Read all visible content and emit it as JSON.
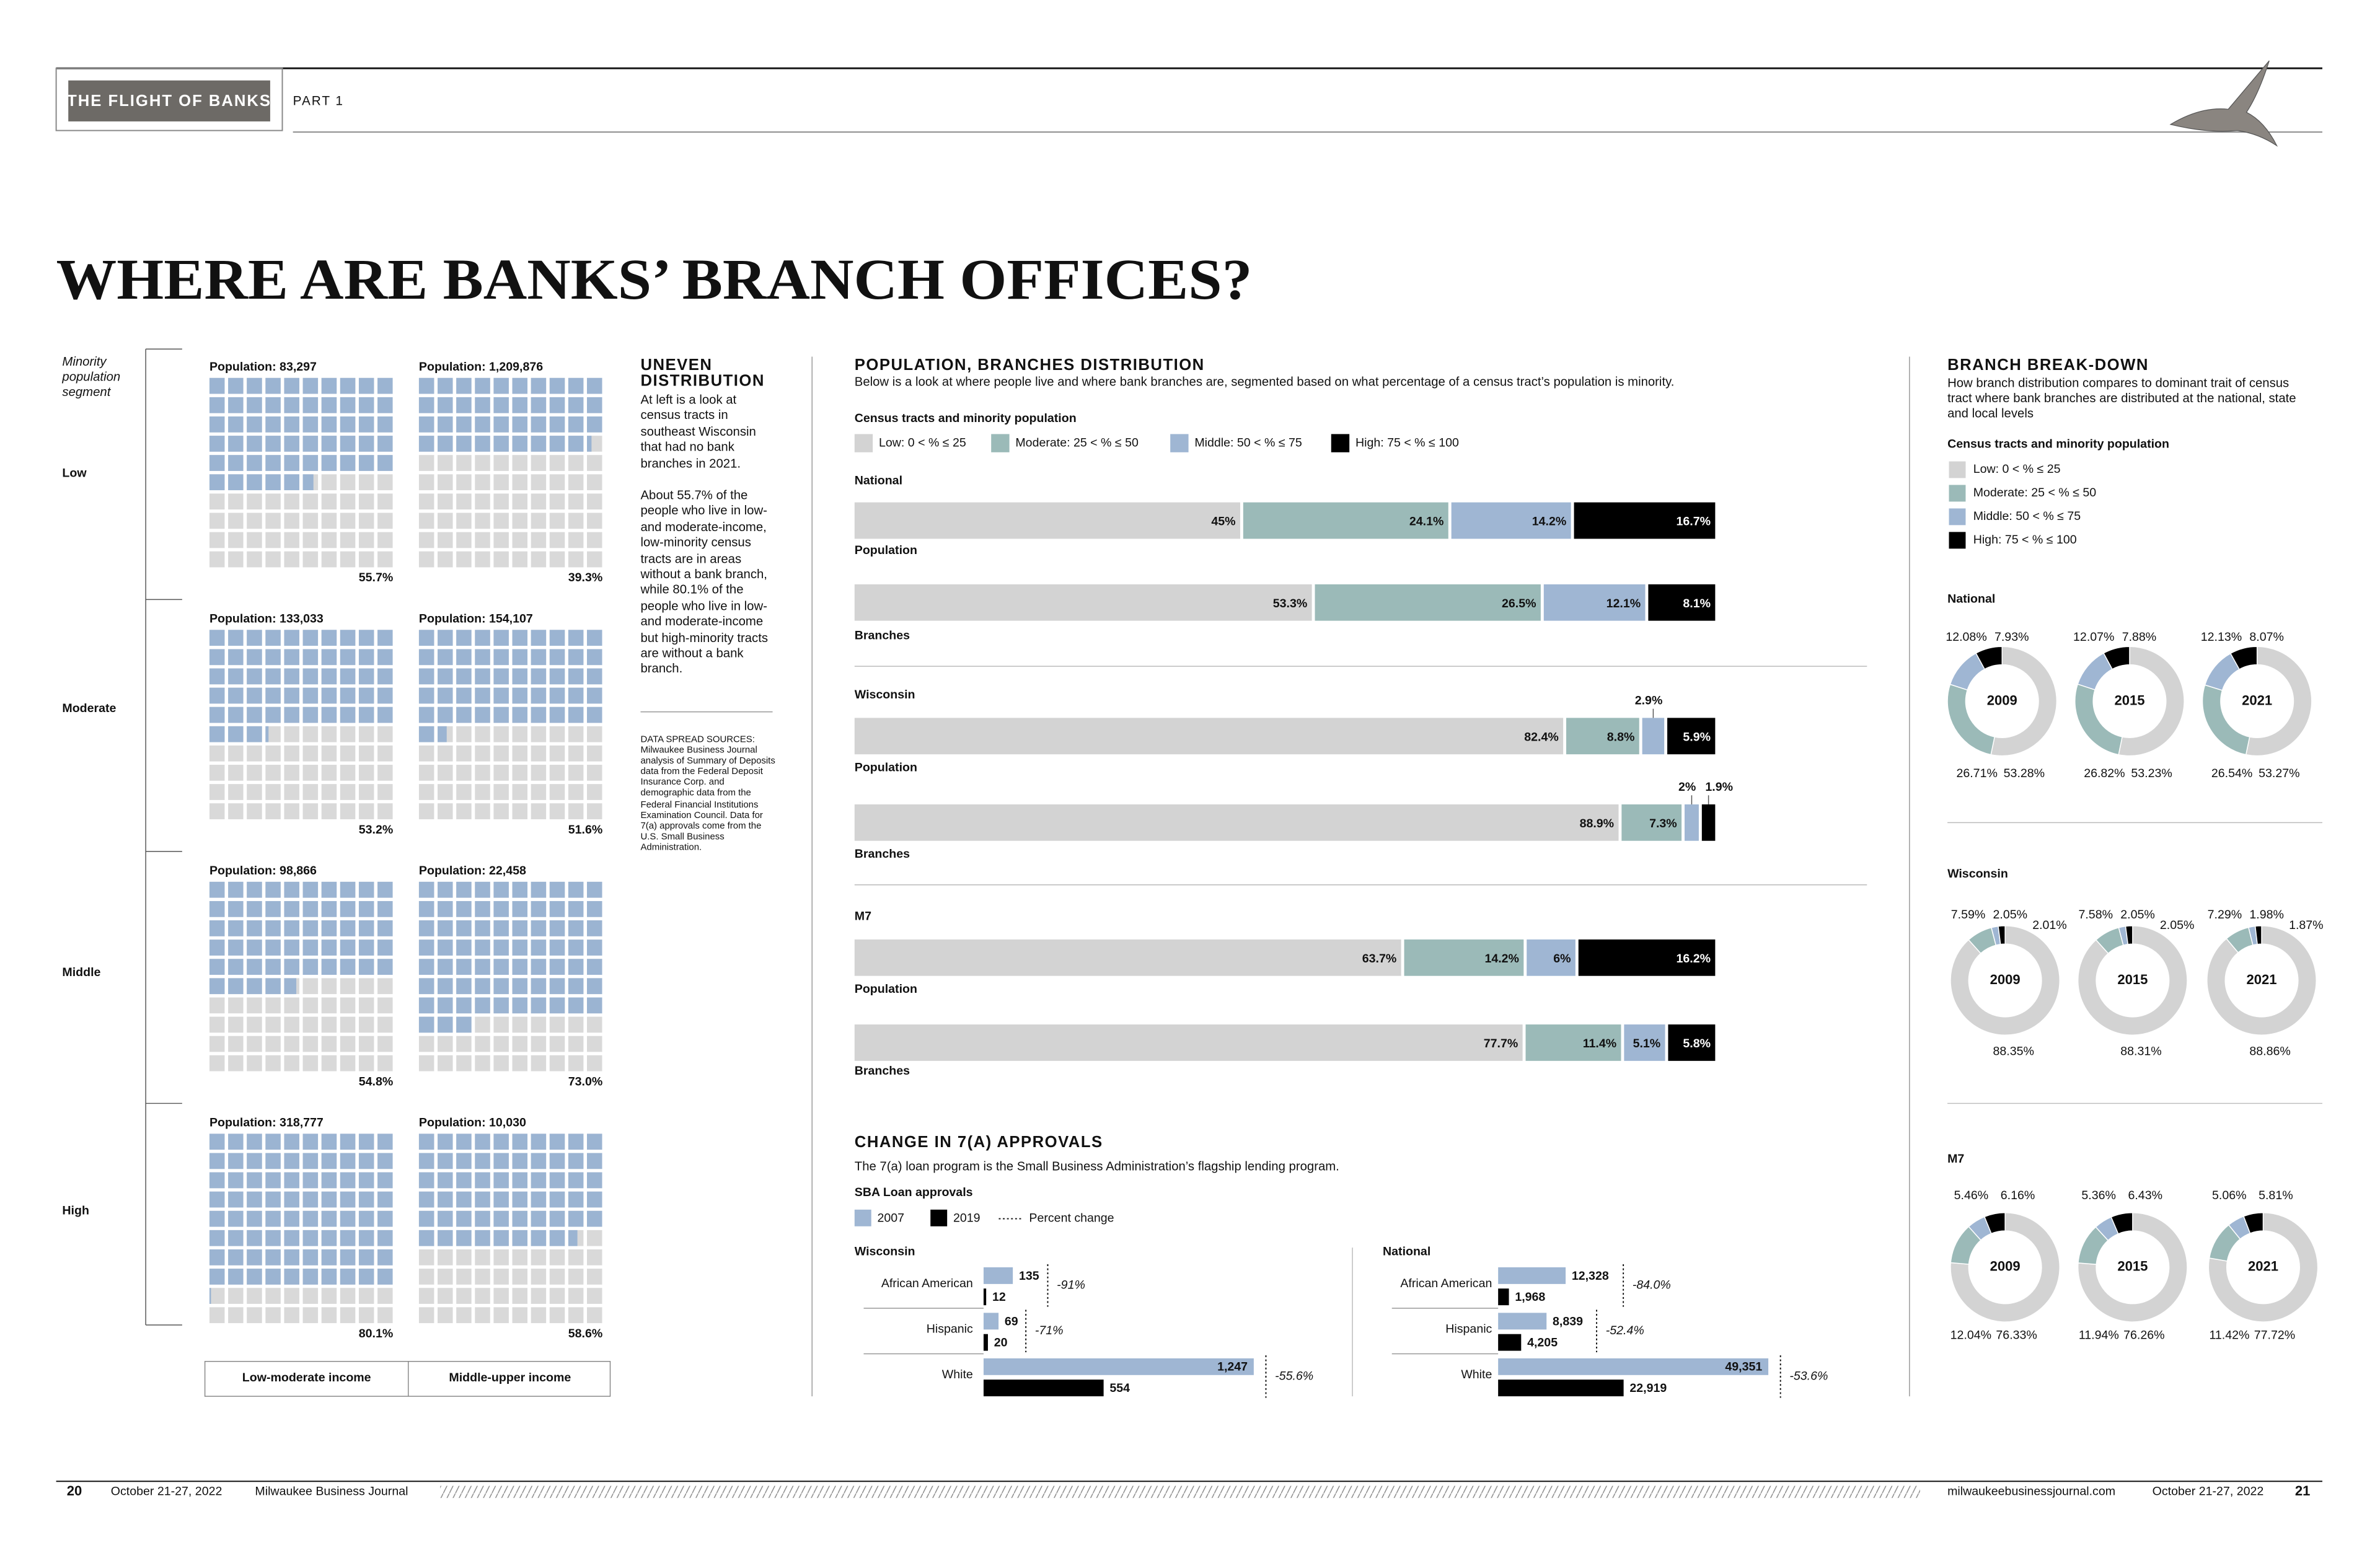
{
  "page": {
    "header": {
      "section": "THE FLIGHT OF BANKS",
      "part": "PART 1"
    },
    "title": "WHERE ARE BANKS’ BRANCH OFFICES?",
    "sidebar": {
      "title_lines": [
        "UNEVEN",
        "DISTRIBUTION"
      ],
      "paragraphs": [
        "At left is a look at census tracts in southeast Wisconsin that had no bank branches in 2021.",
        "About 55.7% of the people who live in low- and moderate-income, low-minority census tracts are in areas without a bank branch, while 80.1% of the people who live in low- and moderate-income but high-minority tracts are without a bank branch."
      ],
      "sources": "DATA SPREAD SOURCES: Milwaukee Business Journal analysis of Summary of Deposits data from the Federal Deposit Insurance Corp. and demographic data from the Federal Financial Institutions Examination Council. Data for 7(a) approvals come from the U.S. Small Business Administration."
    },
    "footer": {
      "left_page": "20",
      "left_date": "October 21-27, 2022",
      "publication": "Milwaukee Business Journal",
      "site": "milwaukeebusinessjournal.com",
      "right_date": "October 21-27, 2022",
      "right_page": "21"
    }
  },
  "chart_data": [
    {
      "type": "waffle",
      "axis_label": "Minority population segment",
      "categories": [
        "Low",
        "Moderate",
        "Middle",
        "High"
      ],
      "empty_color": "#d9d9d9",
      "series": [
        {
          "name": "Low-moderate income",
          "color": "#9bb4d2",
          "values": [
            55.7,
            53.2,
            54.8,
            80.1
          ],
          "value_labels": [
            "55.7%",
            "53.2%",
            "54.8%",
            "80.1%"
          ],
          "population_labels": [
            "Population: 83,297",
            "Population: 133,033",
            "Population: 98,866",
            "Population: 318,777"
          ]
        },
        {
          "name": "Middle-upper income",
          "color": "#9bb4d2",
          "values": [
            39.3,
            51.6,
            73.0,
            58.6
          ],
          "value_labels": [
            "39.3%",
            "51.6%",
            "73.0%",
            "58.6%"
          ],
          "population_labels": [
            "Population: 1,209,876",
            "Population: 154,107",
            "Population: 22,458",
            "Population: 10,030"
          ]
        }
      ]
    },
    {
      "type": "stacked-hbar",
      "title": "POPULATION, BRANCHES DISTRIBUTION",
      "subtitle": "Below is a look at where people live and where bank branches are, segmented based on what percentage of a census tract’s population is minority.",
      "legend_title": "Census tracts and minority population",
      "groups": [
        "National",
        "Wisconsin",
        "M7"
      ],
      "categories": [
        "Population",
        "Branches",
        "Population",
        "Branches",
        "Population",
        "Branches"
      ],
      "series": [
        {
          "name": "Low: 0 < % ≤ 25",
          "color": "#d3d3d3",
          "values": [
            45,
            53.3,
            82.4,
            88.9,
            63.7,
            77.7
          ],
          "value_labels": [
            "45%",
            "53.3%",
            "82.4%",
            "88.9%",
            "63.7%",
            "77.7%"
          ]
        },
        {
          "name": "Moderate: 25 < % ≤ 50",
          "color": "#9bbab8",
          "values": [
            24.1,
            26.5,
            8.8,
            7.3,
            14.2,
            11.4
          ],
          "value_labels": [
            "24.1%",
            "26.5%",
            "8.8%",
            "7.3%",
            "14.2%",
            "11.4%"
          ]
        },
        {
          "name": "Middle: 50 < % ≤ 75",
          "color": "#9fb6d3",
          "values": [
            14.2,
            12.1,
            2.9,
            2,
            6,
            5.1
          ],
          "value_labels": [
            "14.2%",
            "12.1%",
            "2.9%",
            "2%",
            "6%",
            "5.1%"
          ]
        },
        {
          "name": "High: 75 < % ≤ 100",
          "color": "#000000",
          "values": [
            16.7,
            8.1,
            5.9,
            1.9,
            16.2,
            5.8
          ],
          "value_labels": [
            "16.7%",
            "8.1%",
            "5.9%",
            "1.9%",
            "16.2%",
            "5.8%"
          ]
        }
      ]
    },
    {
      "type": "donut",
      "title": "BRANCH BREAK-DOWN",
      "subtitle": "How branch distribution compares to dominant trait of census tract where bank branches are distributed at the national, state and local levels",
      "legend_title": "Census tracts and minority population",
      "groups": [
        "National",
        "Wisconsin",
        "M7"
      ],
      "categories": [
        "2009",
        "2015",
        "2021",
        "2009",
        "2015",
        "2021",
        "2009",
        "2015",
        "2021"
      ],
      "series": [
        {
          "name": "Low: 0 < % ≤ 25",
          "color": "#d3d3d3",
          "values": [
            53.28,
            53.23,
            53.27,
            88.35,
            88.31,
            88.86,
            76.33,
            76.26,
            77.72
          ],
          "value_labels": [
            "53.28%",
            "53.23%",
            "53.27%",
            "88.35%",
            "88.31%",
            "88.86%",
            "76.33%",
            "76.26%",
            "77.72%"
          ]
        },
        {
          "name": "Moderate: 25 < % ≤ 50",
          "color": "#9bbab8",
          "values": [
            26.71,
            26.82,
            26.54,
            7.59,
            7.58,
            7.29,
            12.04,
            11.94,
            11.42
          ],
          "value_labels": [
            "26.71%",
            "26.82%",
            "26.54%",
            "7.59%",
            "7.58%",
            "7.29%",
            "12.04%",
            "11.94%",
            "11.42%"
          ]
        },
        {
          "name": "Middle: 50 < % ≤ 75",
          "color": "#9fb6d3",
          "values": [
            12.08,
            12.07,
            12.13,
            2.05,
            2.05,
            1.98,
            5.46,
            5.36,
            5.06
          ],
          "value_labels": [
            "12.08%",
            "12.07%",
            "12.13%",
            "2.05%",
            "2.05%",
            "1.98%",
            "5.46%",
            "5.36%",
            "5.06%"
          ]
        },
        {
          "name": "High: 75 < % ≤ 100",
          "color": "#000000",
          "values": [
            7.93,
            7.88,
            8.07,
            2.01,
            2.05,
            1.87,
            6.16,
            6.43,
            5.81
          ],
          "value_labels": [
            "7.93%",
            "7.88%",
            "8.07%",
            "2.01%",
            "2.05%",
            "1.87%",
            "6.16%",
            "6.43%",
            "5.81%"
          ]
        }
      ]
    },
    {
      "type": "grouped-hbar",
      "title": "CHANGE IN 7(A) APPROVALS",
      "subtitle": "The 7(a) loan program is the Small Business Administration’s flagship lending program.",
      "legend_title": "SBA Loan approvals",
      "change_name": "Percent change",
      "series": [
        {
          "name": "2007",
          "color": "#9fb6d3"
        },
        {
          "name": "2019",
          "color": "#000000"
        }
      ],
      "panels": [
        {
          "name": "Wisconsin",
          "categories": [
            "African American",
            "Hispanic",
            "White"
          ],
          "values": [
            [
              135,
              69,
              1247
            ],
            [
              12,
              20,
              554
            ]
          ],
          "value_labels": [
            [
              "135",
              "69",
              "1,247"
            ],
            [
              "12",
              "20",
              "554"
            ]
          ],
          "change": [
            -91,
            -71,
            -55.6
          ],
          "change_labels": [
            "-91%",
            "-71%",
            "-55.6%"
          ]
        },
        {
          "name": "National",
          "categories": [
            "African American",
            "Hispanic",
            "White"
          ],
          "values": [
            [
              12328,
              8839,
              49351
            ],
            [
              1968,
              4205,
              22919
            ]
          ],
          "value_labels": [
            [
              "12,328",
              "8,839",
              "49,351"
            ],
            [
              "1,968",
              "4,205",
              "22,919"
            ]
          ],
          "change": [
            -84.0,
            -52.4,
            -53.6
          ],
          "change_labels": [
            "-84.0%",
            "-52.4%",
            "-53.6%"
          ]
        }
      ]
    }
  ]
}
